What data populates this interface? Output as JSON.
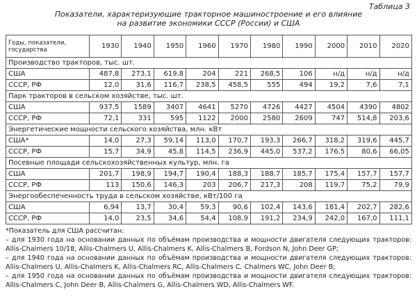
{
  "header": {
    "table_number": "Таблица 3",
    "title": [
      "Показатели, характеризующие тракторное машиностроение и его влияние",
      "на развитие экономики СССР (России) и США"
    ]
  },
  "table": {
    "columns": [
      "Годы, показатели, государства",
      "1930",
      "1940",
      "1950",
      "1960",
      "1970",
      "1980",
      "1990",
      "2000",
      "2010",
      "2020"
    ],
    "sections": [
      {
        "title": "Производство тракторов, тыс. шт.",
        "rows": [
          [
            "США",
            "487,8",
            "273,1",
            "619,8",
            "204",
            "221",
            "268,5",
            "106",
            "н/д",
            "н/д",
            "н/д"
          ],
          [
            "СССР, РФ",
            "12,0",
            "31,6",
            "116,7",
            "238,5",
            "458,5",
            "555",
            "494",
            "19,2",
            "7,6",
            "7,1"
          ]
        ]
      },
      {
        "title": "Парк тракторов в сельском хозяйстве, тыс. шт.",
        "rows": [
          [
            "США",
            "937,5",
            "1589",
            "3407",
            "4641",
            "5270",
            "4726",
            "4427",
            "4504",
            "4390",
            "4802"
          ],
          [
            "СССР, РФ",
            "72,1",
            "331",
            "595",
            "1122",
            "2000",
            "2580",
            "2609",
            "747",
            "514,8",
            "203,6"
          ]
        ]
      },
      {
        "title": "Энергетические мощности сельского хозяйства, млн. кВт",
        "rows": [
          [
            "США*",
            "14,0",
            "27,3",
            "59,14",
            "113,0",
            "170,7",
            "193,3",
            "266,7",
            "318,2",
            "319,6",
            "445,7"
          ],
          [
            "СССР, РФ",
            "15,7",
            "34,9",
            "45,8",
            "114,5",
            "236,9",
            "445,0",
            "537,2",
            "176,5",
            "80,6",
            "66,05"
          ]
        ]
      },
      {
        "title": "Посевные площади сельскохозяйственных культур, млн. га",
        "rows": [
          [
            "США",
            "201,7",
            "198,9",
            "194,7",
            "190,4",
            "188,3",
            "188,7",
            "185,7",
            "175,4",
            "157,7",
            "157,7"
          ],
          [
            "СССР, РФ",
            "113",
            "150,6",
            "146,3",
            "203",
            "206,7",
            "217,3",
            "208",
            "119,7",
            "75,2",
            "79,9"
          ]
        ]
      },
      {
        "title": "Энергообеспеченность труда в сельском хозяйстве, кВт/100 га",
        "rows": [
          [
            "США",
            "6,94",
            "13,7",
            "30,4",
            "59,3",
            "90,6",
            "102,4",
            "143,6",
            "181,4",
            "202,7",
            "282,6"
          ],
          [
            "СССР, РФ",
            "14,0",
            "23,5",
            "34,6",
            "54,4",
            "108,9",
            "191,2",
            "234,9",
            "242,0",
            "167,0",
            "111,1"
          ]
        ]
      }
    ]
  },
  "notes": [
    "*Показатель для США рассчитан:",
    "– для 1930 года на основании данных по объёмам производства и мощности двигателя следующих тракторов: Allis-Chalmers 10/18, Allis-Chalmers U, Allis-Chalmers K, Allis-Chalmers B, Fordson N, John Deer GP;",
    "– для 1940 года на основании данных по объёмам производства и мощности двигателя следующих тракторов: Allis-Chalmers U, Allis-Chalmers K, Allis-Chalmers RC, Allis-Chalmers C, Chalmers WC, John Deer B;",
    "– для 1950 года на основании данных по объёмам производства и мощности двигателя следующих тракторов: Allis-Chalmers C, John Deer B, Allis-Chalmers G, Allis-Chalmers WD, Allis-Chalmers WF."
  ]
}
